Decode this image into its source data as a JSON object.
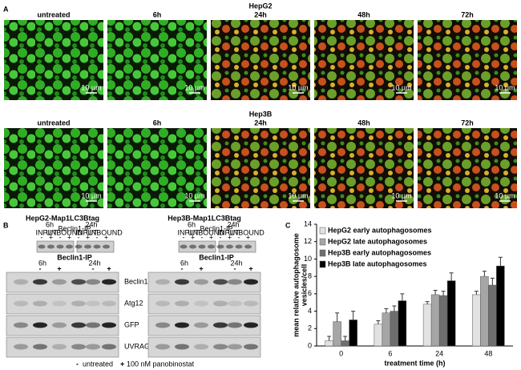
{
  "panel_a": {
    "label": "A",
    "scale_bar": "10 µm",
    "rows": [
      {
        "title": "HepG2",
        "timepoints": [
          "untreated",
          "6h",
          "24h",
          "48h",
          "72h"
        ]
      },
      {
        "title": "Hep3B",
        "timepoints": [
          "untreated",
          "6h",
          "24h",
          "48h",
          "72h"
        ]
      }
    ]
  },
  "panel_b": {
    "label": "B",
    "signs": [
      "-",
      "+"
    ],
    "row_labels": [
      "Beclin1",
      "Atg12",
      "GFP",
      "UVRAG"
    ],
    "blots": [
      {
        "title": "HepG2-Map1LC3Btag",
        "inset_times": [
          "6h",
          "24h"
        ],
        "inset_groups": [
          "INPUT",
          "UNBOUND"
        ],
        "ip": "Beclin1-IP",
        "times": [
          "6h",
          "24h"
        ]
      },
      {
        "title": "Hep3B-Map1LC3Btag",
        "inset_times": [
          "6h",
          "24h"
        ],
        "inset_groups": [
          "INPUT",
          "UNBOUND"
        ],
        "ip": "Beclin1-IP",
        "times": [
          "6h",
          "24h"
        ]
      }
    ],
    "legend": [
      {
        "sign": "-",
        "text": "untreated"
      },
      {
        "sign": "+",
        "text": "100 nM panobinostat"
      }
    ]
  },
  "chart_data": {
    "type": "bar",
    "label": "C",
    "ylabel": [
      "mean relative autophagosome",
      "vesicles/cell"
    ],
    "xlabel": "treatment time (h)",
    "categories": [
      "0",
      "6",
      "24",
      "48"
    ],
    "ylim": [
      0,
      14
    ],
    "yticks": [
      0,
      2,
      4,
      6,
      8,
      10,
      12,
      14
    ],
    "series": [
      {
        "name": "HepG2 early autophagosomes",
        "color": "#e2e2e2",
        "values": [
          0.6,
          2.5,
          4.8,
          5.9
        ],
        "errors": [
          0.5,
          0.4,
          0.3,
          0.4
        ]
      },
      {
        "name": "HepG2 late autophagosomes",
        "color": "#a6a6a6",
        "values": [
          2.8,
          3.8,
          5.9,
          8.0
        ],
        "errors": [
          1.0,
          0.5,
          0.5,
          0.6
        ]
      },
      {
        "name": "Hep3B early autophagosomes",
        "color": "#6e6e6e",
        "values": [
          0.6,
          4.0,
          5.8,
          7.0
        ],
        "errors": [
          0.5,
          0.6,
          0.5,
          0.8
        ]
      },
      {
        "name": "Hep3B late autophagosomes",
        "color": "#000000",
        "values": [
          3.0,
          5.2,
          7.5,
          9.2
        ],
        "errors": [
          1.0,
          0.8,
          0.9,
          1.0
        ]
      }
    ]
  }
}
